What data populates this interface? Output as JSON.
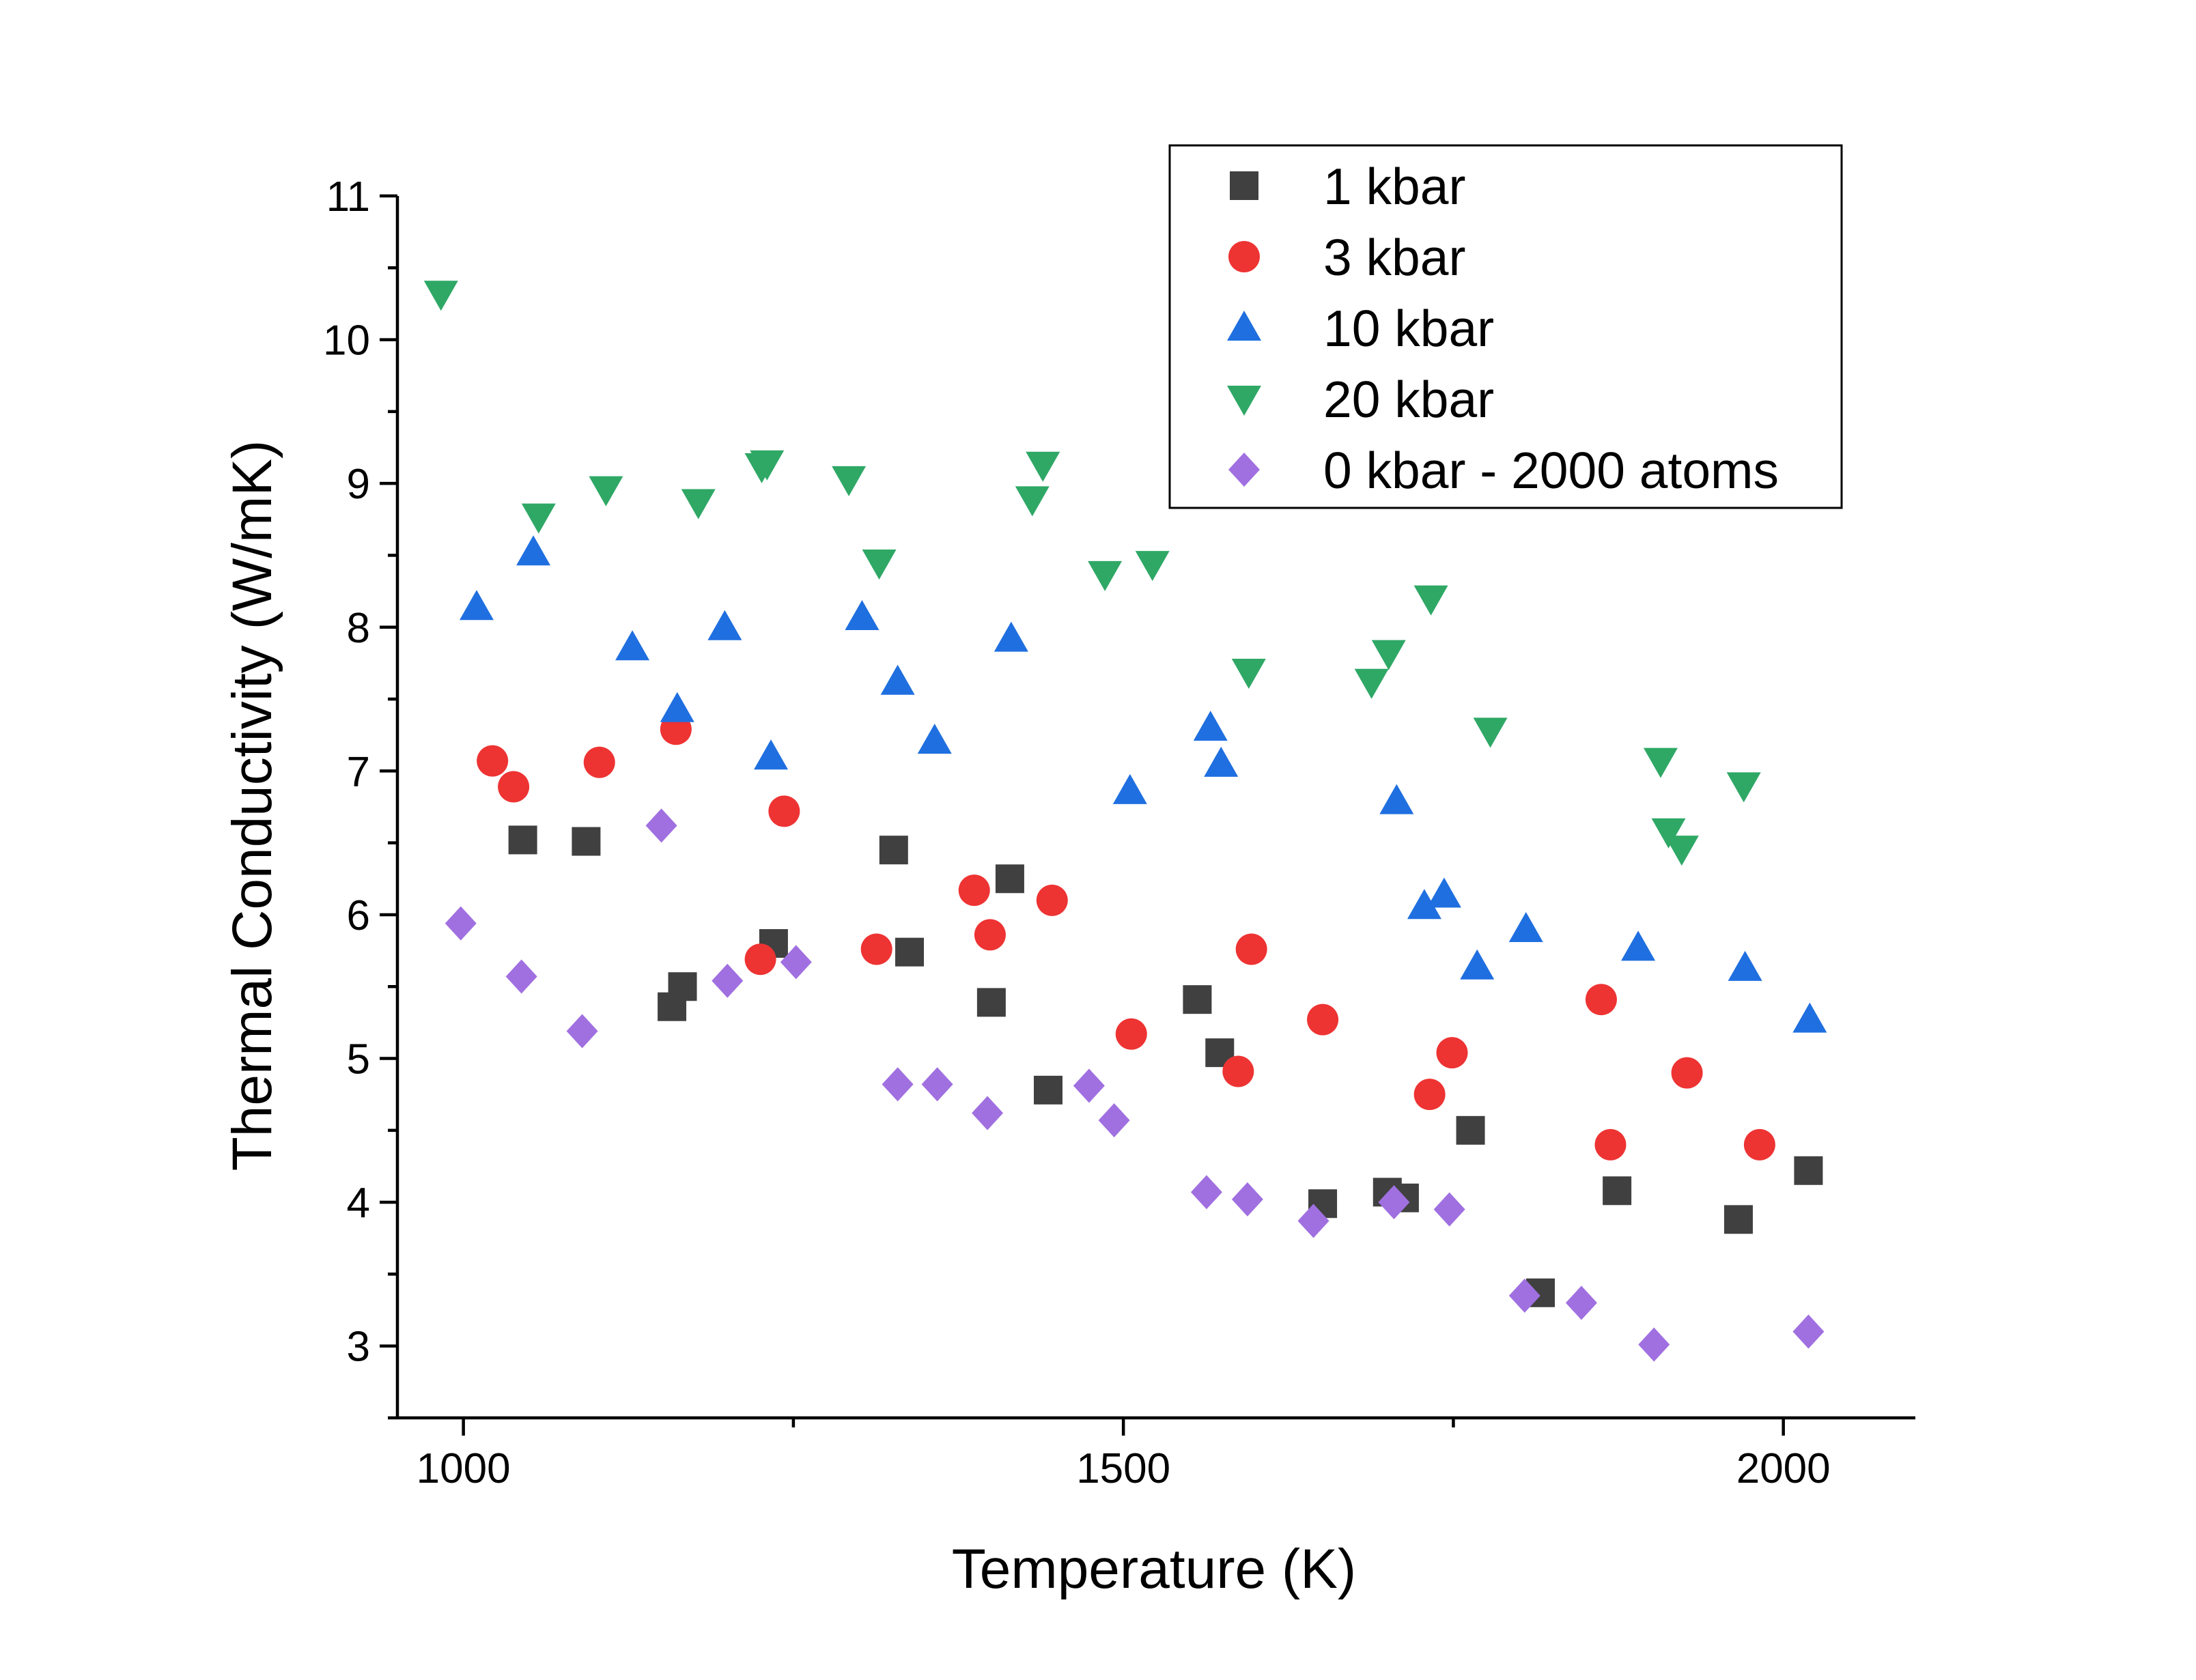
{
  "chart_data": {
    "type": "scatter",
    "title": "",
    "xlabel": "Temperature (K)",
    "ylabel": "Thermal Conductivity (W/mK)",
    "xlim": [
      950,
      2100
    ],
    "ylim": [
      2.5,
      11
    ],
    "xticks": [
      1000,
      1500,
      2000
    ],
    "yticks": [
      3,
      4,
      5,
      6,
      7,
      8,
      9,
      10,
      11
    ],
    "grid": false,
    "legend_position": "top-right",
    "series": [
      {
        "name": "1 kbar",
        "marker": "square",
        "color": "#404040",
        "points": [
          [
            1045,
            6.52
          ],
          [
            1093,
            6.51
          ],
          [
            1158,
            5.36
          ],
          [
            1166,
            5.5
          ],
          [
            1235,
            5.8
          ],
          [
            1326,
            6.45
          ],
          [
            1338,
            5.74
          ],
          [
            1400,
            5.39
          ],
          [
            1414,
            6.25
          ],
          [
            1443,
            4.78
          ],
          [
            1556,
            5.41
          ],
          [
            1573,
            5.04
          ],
          [
            1651,
            3.99
          ],
          [
            1700,
            4.07
          ],
          [
            1713,
            4.03
          ],
          [
            1763,
            4.5
          ],
          [
            1816,
            3.37
          ],
          [
            1874,
            4.08
          ],
          [
            1966,
            3.88
          ],
          [
            2019,
            4.22
          ]
        ]
      },
      {
        "name": "3 kbar",
        "marker": "circle",
        "color": "#ee3333",
        "points": [
          [
            1022,
            7.07
          ],
          [
            1038,
            6.89
          ],
          [
            1103,
            7.06
          ],
          [
            1161,
            7.29
          ],
          [
            1225,
            5.69
          ],
          [
            1243,
            6.72
          ],
          [
            1313,
            5.76
          ],
          [
            1387,
            6.17
          ],
          [
            1399,
            5.86
          ],
          [
            1446,
            6.1
          ],
          [
            1506,
            5.17
          ],
          [
            1587,
            4.91
          ],
          [
            1597,
            5.76
          ],
          [
            1651,
            5.27
          ],
          [
            1732,
            4.75
          ],
          [
            1749,
            5.04
          ],
          [
            1862,
            5.41
          ],
          [
            1869,
            4.4
          ],
          [
            1927,
            4.9
          ],
          [
            1982,
            4.4
          ]
        ]
      },
      {
        "name": "10 kbar",
        "marker": "triangle-up",
        "color": "#1f6fe0",
        "points": [
          [
            1010,
            8.14
          ],
          [
            1053,
            8.52
          ],
          [
            1128,
            7.86
          ],
          [
            1162,
            7.43
          ],
          [
            1198,
            8.0
          ],
          [
            1233,
            7.1
          ],
          [
            1302,
            8.07
          ],
          [
            1329,
            7.62
          ],
          [
            1357,
            7.21
          ],
          [
            1415,
            7.92
          ],
          [
            1505,
            6.86
          ],
          [
            1566,
            7.3
          ],
          [
            1574,
            7.05
          ],
          [
            1707,
            6.79
          ],
          [
            1728,
            6.06
          ],
          [
            1743,
            6.14
          ],
          [
            1768,
            5.64
          ],
          [
            1805,
            5.9
          ],
          [
            1890,
            5.77
          ],
          [
            1971,
            5.63
          ],
          [
            2020,
            5.27
          ]
        ]
      },
      {
        "name": "20 kbar",
        "marker": "triangle-down",
        "color": "#2fa866",
        "points": [
          [
            983,
            10.32
          ],
          [
            1057,
            8.77
          ],
          [
            1108,
            8.96
          ],
          [
            1178,
            8.87
          ],
          [
            1226,
            9.12
          ],
          [
            1230,
            9.14
          ],
          [
            1292,
            9.03
          ],
          [
            1315,
            8.45
          ],
          [
            1431,
            8.89
          ],
          [
            1439,
            9.13
          ],
          [
            1486,
            8.37
          ],
          [
            1522,
            8.44
          ],
          [
            1595,
            7.69
          ],
          [
            1688,
            7.62
          ],
          [
            1701,
            7.82
          ],
          [
            1733,
            8.2
          ],
          [
            1778,
            7.28
          ],
          [
            1907,
            7.07
          ],
          [
            1913,
            6.58
          ],
          [
            1923,
            6.46
          ],
          [
            1970,
            6.9
          ]
        ]
      },
      {
        "name": "0 kbar - 2000 atoms",
        "marker": "diamond",
        "color": "#a070e0",
        "points": [
          [
            998,
            5.94
          ],
          [
            1044,
            5.57
          ],
          [
            1090,
            5.19
          ],
          [
            1150,
            6.62
          ],
          [
            1200,
            5.54
          ],
          [
            1252,
            5.67
          ],
          [
            1329,
            4.82
          ],
          [
            1359,
            4.82
          ],
          [
            1397,
            4.62
          ],
          [
            1474,
            4.81
          ],
          [
            1493,
            4.57
          ],
          [
            1563,
            4.07
          ],
          [
            1594,
            4.02
          ],
          [
            1644,
            3.87
          ],
          [
            1705,
            4.0
          ],
          [
            1747,
            3.95
          ],
          [
            1804,
            3.35
          ],
          [
            1847,
            3.3
          ],
          [
            1902,
            3.01
          ],
          [
            2019,
            3.1
          ]
        ]
      }
    ]
  }
}
